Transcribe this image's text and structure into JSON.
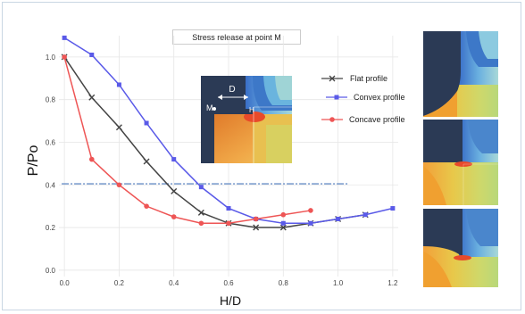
{
  "chart_data": {
    "type": "line",
    "title": "Stress release at point M",
    "xlabel": "H/D",
    "ylabel": "P/Po",
    "xlim": [
      -0.02,
      1.22
    ],
    "ylim": [
      -0.03,
      1.1
    ],
    "xticks": [
      "0.0",
      "0.2",
      "0.4",
      "0.6",
      "0.8",
      "1.0",
      "1.2"
    ],
    "yticks": [
      "0.0",
      "0.2",
      "0.4",
      "0.6",
      "0.8",
      "1.0"
    ],
    "grid": true,
    "legend_position": "top-right",
    "series": [
      {
        "name": "Flat profile",
        "marker": "x",
        "color": "#444444",
        "x": [
          0.0,
          0.1,
          0.2,
          0.3,
          0.4,
          0.5,
          0.6,
          0.7,
          0.8,
          0.9,
          1.0,
          1.1
        ],
        "y": [
          1.0,
          0.81,
          0.67,
          0.51,
          0.37,
          0.27,
          0.22,
          0.2,
          0.2,
          0.22,
          0.24,
          0.26
        ]
      },
      {
        "name": "Convex profile",
        "marker": "square",
        "color": "#5a5ae8",
        "x": [
          0.0,
          0.1,
          0.2,
          0.3,
          0.4,
          0.5,
          0.6,
          0.7,
          0.8,
          0.9,
          1.0,
          1.1,
          1.2
        ],
        "y": [
          1.09,
          1.01,
          0.87,
          0.69,
          0.52,
          0.39,
          0.29,
          0.24,
          0.22,
          0.22,
          0.24,
          0.26,
          0.29
        ]
      },
      {
        "name": "Concave profile",
        "marker": "circle",
        "color": "#ee5555",
        "x": [
          0.0,
          0.1,
          0.2,
          0.3,
          0.4,
          0.5,
          0.6,
          0.7,
          0.8,
          0.9
        ],
        "y": [
          1.0,
          0.52,
          0.4,
          0.3,
          0.25,
          0.22,
          0.22,
          0.24,
          0.26,
          0.28
        ]
      }
    ],
    "reference_line": {
      "y": 0.405,
      "x_start": -0.01,
      "x_end": 1.04,
      "style": "dash-dot",
      "color": "#6a8fc8"
    }
  },
  "inset": {
    "dimension_label": "D",
    "point_label": "M",
    "h_label": "H"
  },
  "colors": {
    "background": "#ffffff",
    "grid": "#e6e6e6",
    "navy": "#2b3a55"
  }
}
